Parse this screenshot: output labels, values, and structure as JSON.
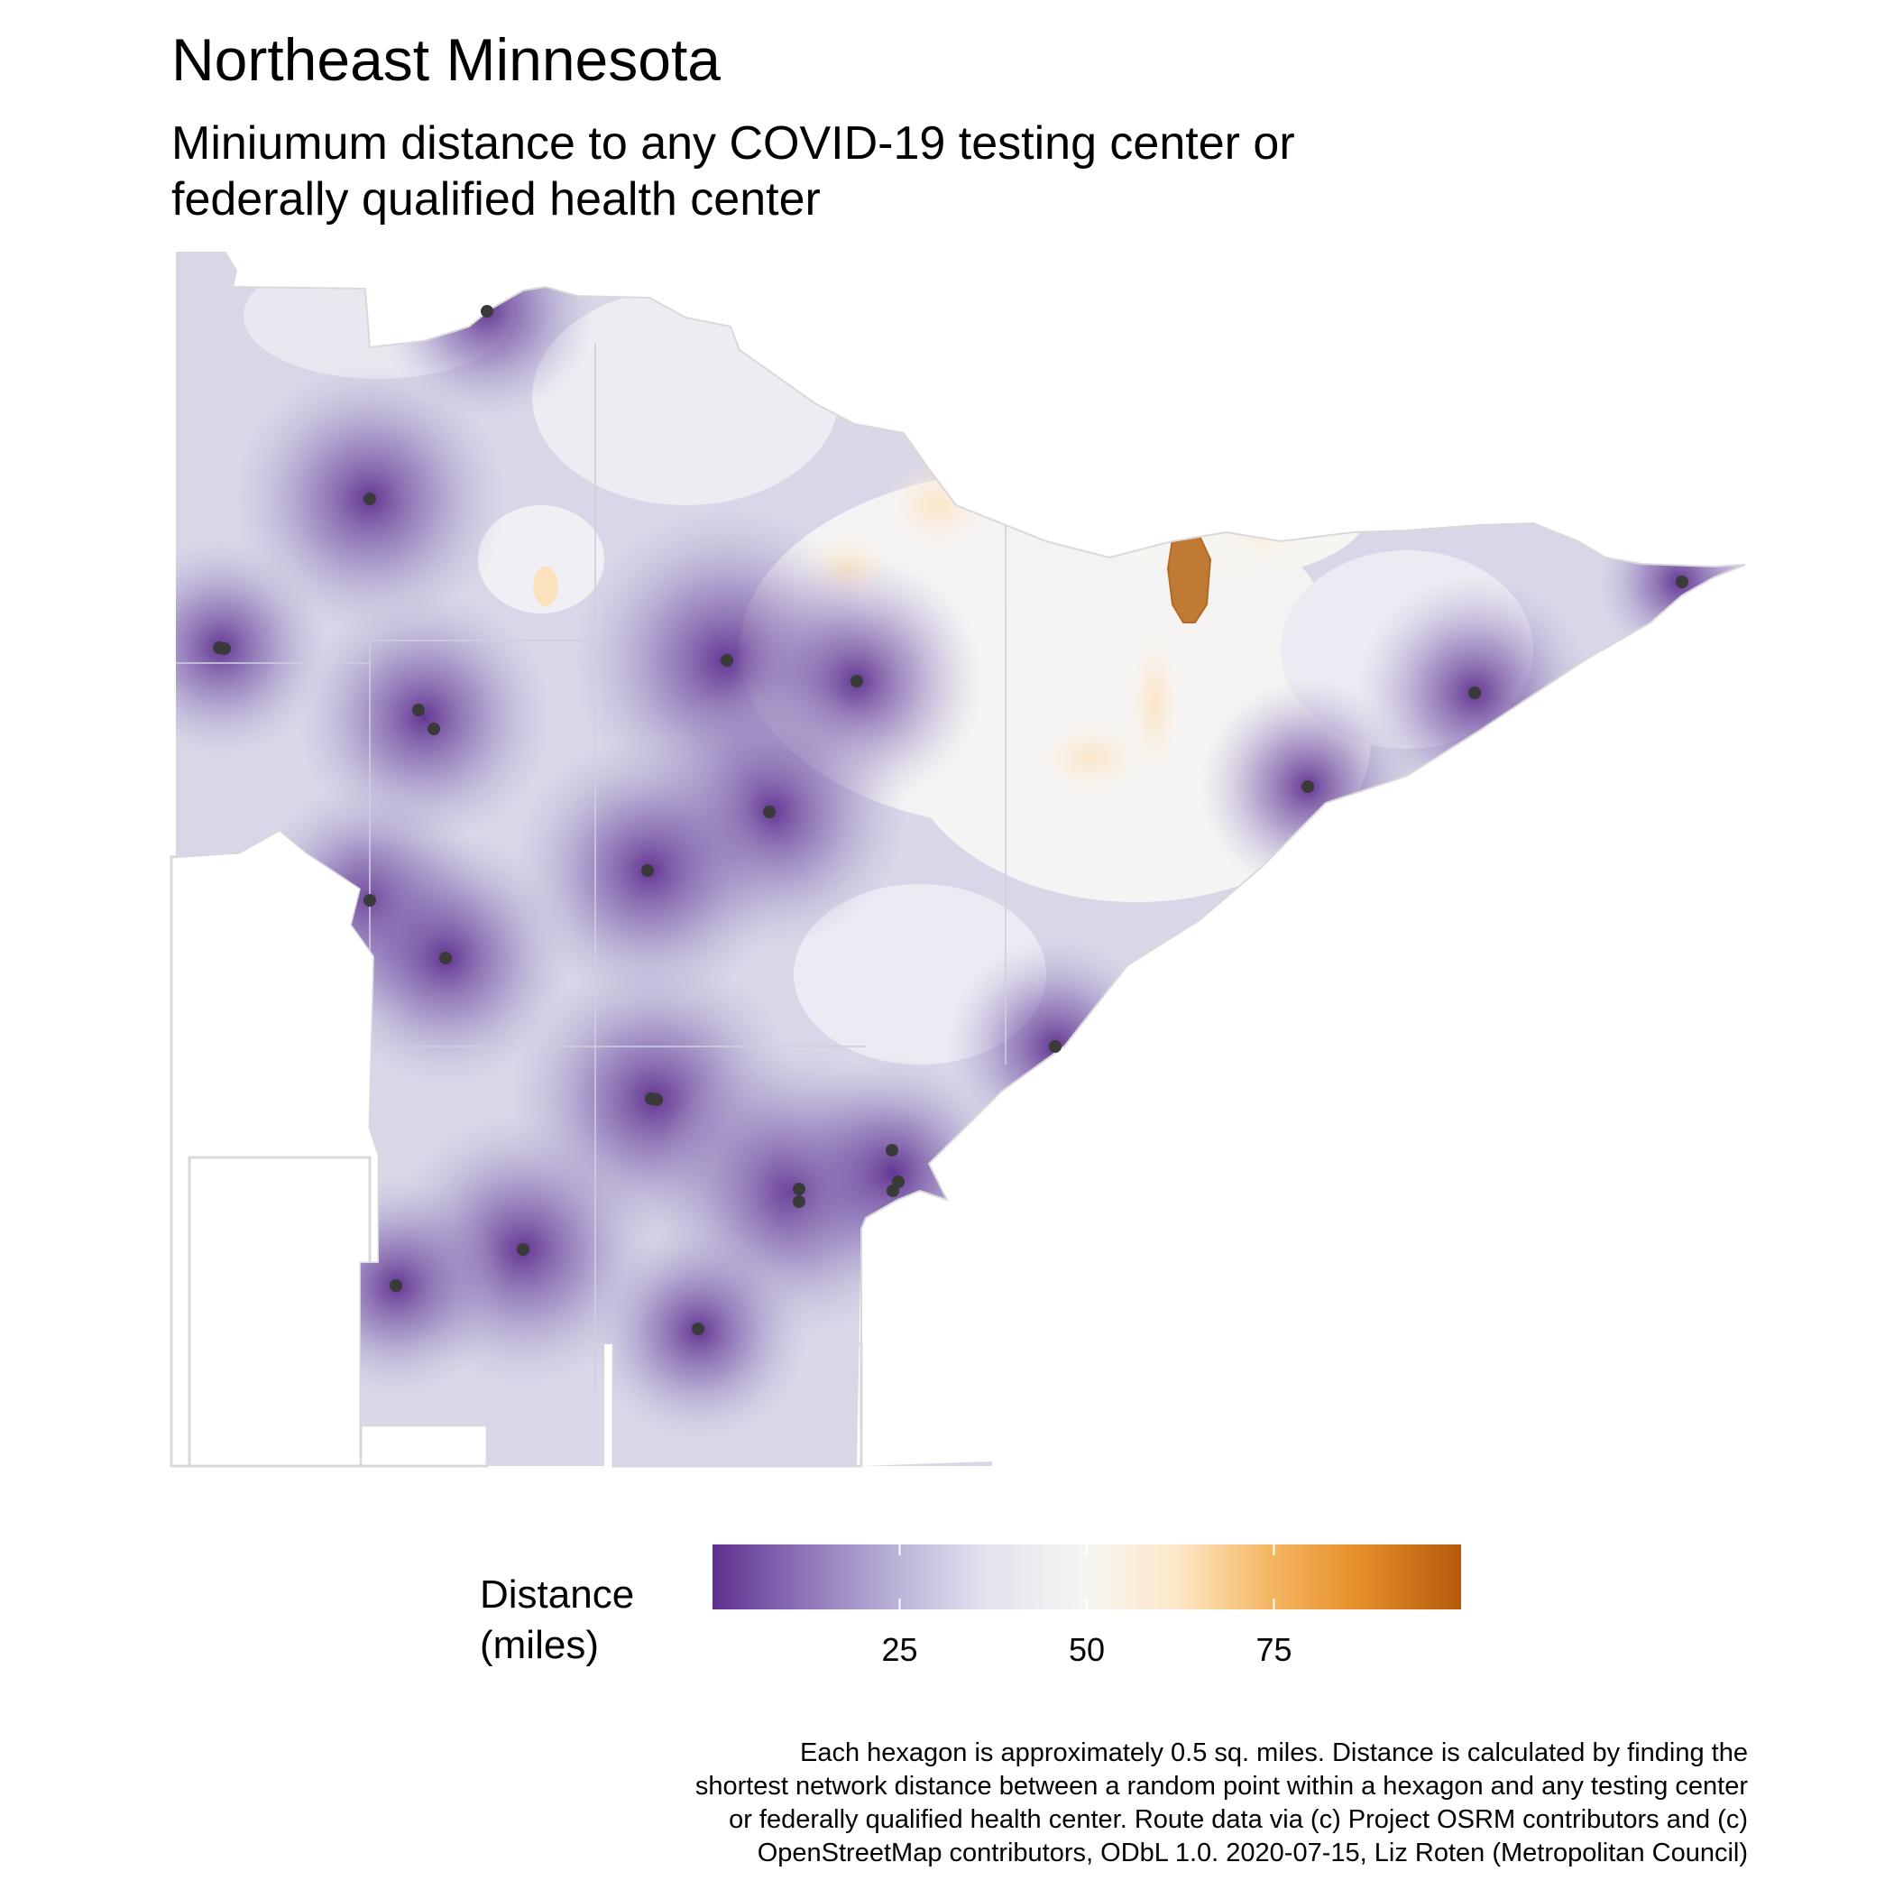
{
  "title": "Northeast Minnesota",
  "subtitle_lines": [
    "Miniumum distance to any COVID-19 testing center or",
    "federally qualified health center"
  ],
  "legend": {
    "title_lines": [
      "Distance",
      "(miles)"
    ],
    "domain": [
      0,
      100
    ],
    "ticks": [
      {
        "value": 25,
        "label": "25"
      },
      {
        "value": 50,
        "label": "50"
      },
      {
        "value": 75,
        "label": "75"
      }
    ],
    "gradient_colors": [
      "#5e2f8e",
      "#8c73b8",
      "#b9b0d6",
      "#e2e1ee",
      "#f6f5f2",
      "#fde8c8",
      "#f5b865",
      "#e78f2b",
      "#b55a0a"
    ]
  },
  "caption_lines": [
    "Each hexagon is approximately 0.5 sq. miles. Distance is calculated by finding the",
    "shortest network distance between a random point within a hexagon and any testing center",
    "or federally qualified health center. Route data via (c) Project OSRM contributors and (c)",
    "OpenStreetMap contributors, ODbL 1.0. 2020-07-15, Liz Roten (Metropolitan Council)"
  ],
  "colors": {
    "near": "#5e2f8e",
    "mid": "#f5f4f6",
    "far": "#b55a0a",
    "outline": "#d9d9d9",
    "center_point": "#3a3a3a"
  }
}
